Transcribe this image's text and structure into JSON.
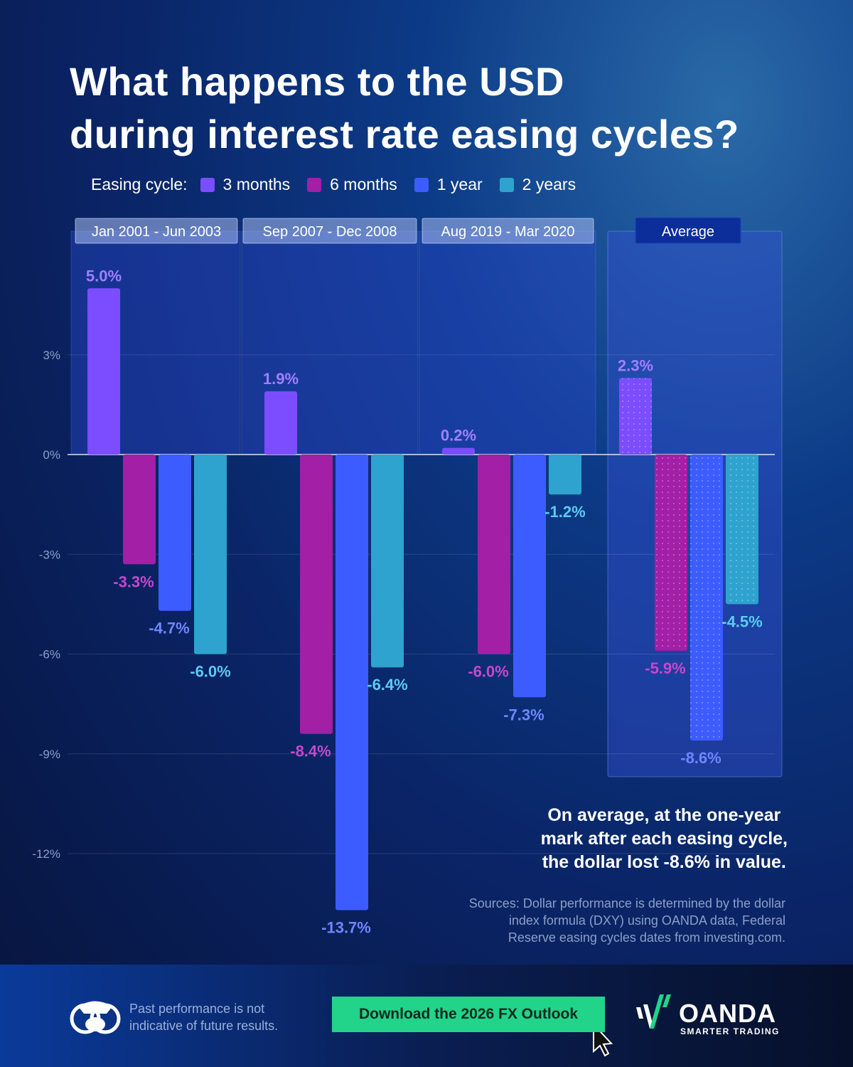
{
  "title_line1": "What happens to the USD",
  "title_line2": "during interest rate easing cycles?",
  "chart_data": {
    "type": "bar",
    "title": "What happens to the USD during interest rate easing cycles?",
    "legend_title": "Easing cycle:",
    "legend_placement": "top",
    "categories": [
      "Jan 2001 - Jun 2003",
      "Sep 2007 - Dec 2008",
      "Aug 2019 - Mar 2020",
      "Average"
    ],
    "series": [
      {
        "name": "3 months",
        "color": "#7b4dff",
        "label_color": "#a07fff",
        "values": [
          5.0,
          1.9,
          0.2,
          2.3
        ],
        "labels": [
          "5.0%",
          "1.9%",
          "0.2%",
          "2.3%"
        ]
      },
      {
        "name": "6 months",
        "color": "#a21fa6",
        "label_color": "#c847cc",
        "values": [
          -3.3,
          -8.4,
          -6.0,
          -5.9
        ],
        "labels": [
          "-3.3%",
          "-8.4%",
          "-6.0%",
          "-5.9%"
        ]
      },
      {
        "name": "1 year",
        "color": "#3d5cff",
        "label_color": "#6f86ff",
        "values": [
          -4.7,
          -13.7,
          -7.3,
          -8.6
        ],
        "labels": [
          "-4.7%",
          "-13.7%",
          "-7.3%",
          "-8.6%"
        ]
      },
      {
        "name": "2 years",
        "color": "#2ea3cf",
        "label_color": "#5ccbf2",
        "values": [
          -6.0,
          -6.4,
          -1.2,
          -4.5
        ],
        "labels": [
          "-6.0%",
          "-6.4%",
          "-1.2%",
          "-4.5%"
        ]
      }
    ],
    "y_ticks": [
      "3%",
      "0%",
      "-3%",
      "-6%",
      "-9%",
      "-12%"
    ],
    "y_tick_values": [
      3,
      0,
      -3,
      -6,
      -9,
      -12
    ],
    "ylim": [
      -14,
      5.5
    ],
    "grid": true
  },
  "note": [
    "On average, at the one-year",
    "mark after each easing cycle,",
    "the dollar lost -8.6% in value."
  ],
  "sources": [
    "Sources: Dollar performance is determined by the dollar",
    "index formula (DXY) using OANDA data, Federal",
    "Reserve easing cycles dates from investing.com."
  ],
  "footer": {
    "disclaimer": [
      "Past performance is not",
      "indicative of future results."
    ],
    "cta": "Download the 2026 FX Outlook",
    "brand": "OANDA",
    "tagline": "SMARTER TRADING"
  }
}
